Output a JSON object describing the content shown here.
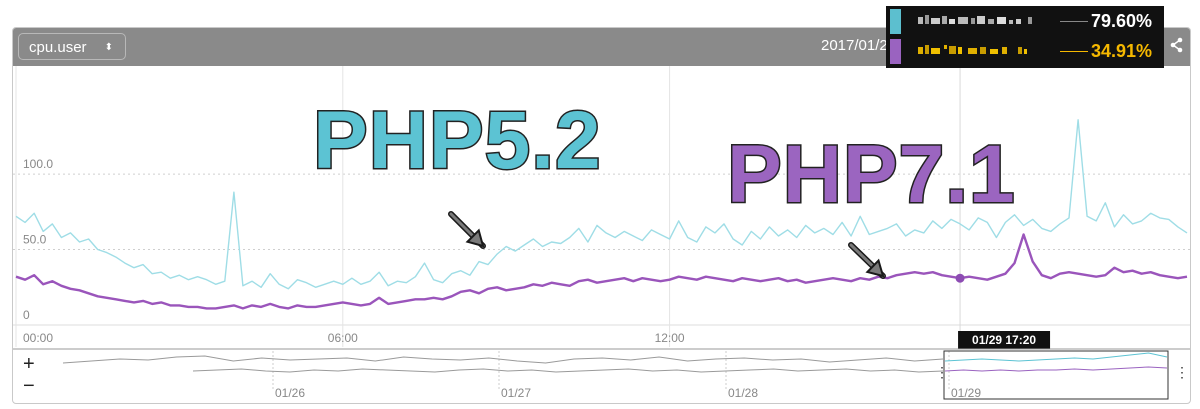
{
  "toolbar": {
    "metric": "cpu.user",
    "caret": "⬍",
    "date": "2017/01/2"
  },
  "legend": [
    {
      "value": "79.60%",
      "color": "#5cbfcf",
      "value_color": "#ffffff"
    },
    {
      "value": "34.91%",
      "color": "#9a63c0",
      "value_color": "#f5b800"
    }
  ],
  "annotations": {
    "php52": "PHP5.2",
    "php71": "PHP7.1",
    "php52_color": "#5cc3d3",
    "php71_color": "#9b65c0"
  },
  "crosshair_label": "01/29 17:20",
  "navigator": {
    "zoom_in": "+",
    "zoom_out": "−",
    "ticks": [
      "01/26",
      "01/27",
      "01/28",
      "01/29"
    ]
  },
  "chart_data": {
    "type": "line",
    "x": [
      "00:00",
      "00:10",
      "00:20",
      "00:30",
      "00:40",
      "00:50",
      "01:00",
      "01:10",
      "01:20",
      "01:30",
      "01:40",
      "01:50",
      "02:00",
      "02:10",
      "02:20",
      "02:30",
      "02:40",
      "02:50",
      "03:00",
      "03:10",
      "03:20",
      "03:30",
      "03:40",
      "03:50",
      "04:00",
      "04:10",
      "04:20",
      "04:30",
      "04:40",
      "04:50",
      "05:00",
      "05:10",
      "05:20",
      "05:30",
      "05:40",
      "05:50",
      "06:00",
      "06:10",
      "06:20",
      "06:30",
      "06:40",
      "06:50",
      "07:00",
      "07:10",
      "07:20",
      "07:30",
      "07:40",
      "07:50",
      "08:00",
      "08:10",
      "08:20",
      "08:30",
      "08:40",
      "08:50",
      "09:00",
      "09:10",
      "09:20",
      "09:30",
      "09:40",
      "09:50",
      "10:00",
      "10:10",
      "10:20",
      "10:30",
      "10:40",
      "10:50",
      "11:00",
      "11:10",
      "11:20",
      "11:30",
      "11:40",
      "11:50",
      "12:00",
      "12:10",
      "12:20",
      "12:30",
      "12:40",
      "12:50",
      "13:00",
      "13:10",
      "13:20",
      "13:30",
      "13:40",
      "13:50",
      "14:00",
      "14:10",
      "14:20",
      "14:30",
      "14:40",
      "14:50",
      "15:00",
      "15:10",
      "15:20",
      "15:30",
      "15:40",
      "15:50",
      "16:00",
      "16:10",
      "16:20",
      "16:30",
      "16:40",
      "16:50",
      "17:00",
      "17:10",
      "17:20",
      "17:30",
      "17:40",
      "17:50",
      "18:00",
      "18:10",
      "18:20",
      "18:30",
      "18:40",
      "18:50",
      "19:00",
      "19:10",
      "19:20",
      "19:30",
      "19:40",
      "19:50",
      "20:00",
      "20:10",
      "20:20",
      "20:30",
      "20:40",
      "20:50",
      "21:00",
      "21:10",
      "21:20",
      "21:30"
    ],
    "series": [
      {
        "color": "#9fdde6",
        "values": [
          72,
          68,
          74,
          62,
          67,
          58,
          61,
          55,
          57,
          50,
          48,
          45,
          41,
          38,
          40,
          34,
          35,
          31,
          33,
          30,
          32,
          30,
          27,
          29,
          88,
          26,
          29,
          25,
          34,
          27,
          24,
          30,
          28,
          25,
          27,
          29,
          27,
          31,
          27,
          29,
          35,
          26,
          29,
          28,
          32,
          41,
          30,
          28,
          34,
          36,
          33,
          42,
          40,
          47,
          52,
          49,
          53,
          57,
          52,
          55,
          54,
          58,
          64,
          55,
          66,
          61,
          58,
          62,
          59,
          56,
          63,
          60,
          57,
          69,
          58,
          55,
          65,
          61,
          67,
          57,
          53,
          62,
          57,
          65,
          59,
          63,
          58,
          66,
          61,
          64,
          60,
          68,
          59,
          72,
          60,
          62,
          64,
          67,
          59,
          63,
          61,
          69,
          64,
          70,
          67,
          63,
          71,
          68,
          58,
          68,
          73,
          66,
          70,
          64,
          62,
          67,
          71,
          136,
          72,
          69,
          81,
          65,
          73,
          67,
          69,
          74,
          71,
          70,
          65,
          61
        ]
      },
      {
        "color": "#9a55bb",
        "values": [
          32,
          30,
          33,
          27,
          29,
          26,
          24,
          23,
          21,
          19,
          18,
          17,
          16,
          15,
          16,
          14,
          15,
          13,
          13,
          12,
          12,
          11,
          11,
          12,
          13,
          11,
          13,
          12,
          14,
          12,
          11,
          13,
          12,
          12,
          13,
          14,
          15,
          14,
          13,
          14,
          18,
          14,
          15,
          16,
          17,
          17,
          18,
          17,
          19,
          22,
          23,
          21,
          24,
          25,
          23,
          24,
          25,
          27,
          26,
          28,
          27,
          26,
          29,
          30,
          28,
          29,
          30,
          31,
          29,
          31,
          30,
          29,
          30,
          32,
          31,
          30,
          32,
          31,
          30,
          29,
          31,
          30,
          29,
          30,
          31,
          29,
          30,
          28,
          29,
          30,
          31,
          30,
          29,
          31,
          30,
          32,
          31,
          33,
          34,
          35,
          34,
          35,
          33,
          32,
          31,
          32,
          31,
          30,
          32,
          34,
          41,
          60,
          42,
          33,
          31,
          34,
          35,
          34,
          33,
          32,
          33,
          38,
          35,
          36,
          34,
          35,
          33,
          32,
          31,
          32
        ]
      }
    ],
    "xticks": [
      "00:00",
      "06:00",
      "12:00"
    ],
    "yticks": [
      0,
      50.0,
      100.0
    ],
    "ylim": [
      0,
      165
    ],
    "grid": true
  }
}
